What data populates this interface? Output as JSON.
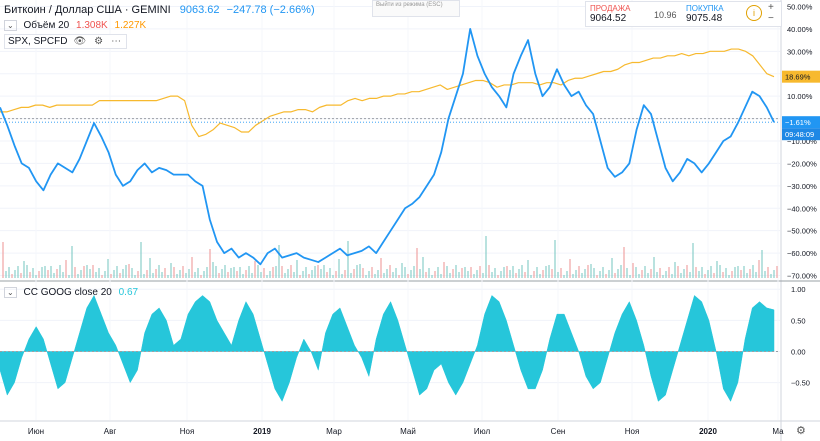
{
  "header": {
    "symbol": "Биткоин / Доллар США · GEMINI",
    "price": "9063.62",
    "change": "−247.78 (−2.66%)"
  },
  "volume": {
    "label": "Объём 20",
    "v1": "1.308K",
    "v2": "1.227K"
  },
  "compare": {
    "label": "SPX, SPCFD"
  },
  "escape_hint": "Выйти из режима (ESC)",
  "trade": {
    "sell_label": "ПРОДАЖА",
    "sell_value": "9064.52",
    "spread": "10.96",
    "buy_label": "ПОКУПКА",
    "buy_value": "9075.48",
    "info": "i",
    "plus": "+",
    "minus": "−"
  },
  "oscillator": {
    "label": "CC GOOG close 20",
    "value": "0.67"
  },
  "gear": "⚙",
  "colors": {
    "btc": "#2196f3",
    "spx": "#f7b92e",
    "osc": "#26c6da",
    "up": "#26a69a",
    "down": "#ef5350"
  },
  "chart_data": [
    {
      "type": "line",
      "title": "Биткоин / Доллар США · GEMINI vs SPX, SPCFD (percent)",
      "x_ticks": [
        "Июн",
        "Авг",
        "Ноя",
        "2019",
        "Мар",
        "Май",
        "Июл",
        "Сен",
        "Ноя",
        "2020",
        "Ма"
      ],
      "y_ticks": [
        "50.00%",
        "40.00%",
        "30.00%",
        "20.00%",
        "10.00%",
        "0.00%",
        "−10.00%",
        "−20.00%",
        "−30.00%",
        "−40.00%",
        "−50.00%",
        "−60.00%",
        "−70.00%"
      ],
      "ylim": [
        -72,
        52
      ],
      "series": [
        {
          "name": "BTC",
          "last_label": "−1.61%",
          "time_label": "09:48:09",
          "values": [
            5,
            -3,
            -12,
            -20,
            -22,
            -28,
            -32,
            -25,
            -20,
            -22,
            -24,
            -18,
            -10,
            -2,
            -8,
            -15,
            -25,
            -30,
            -28,
            -23,
            -20,
            -24,
            -22,
            -23,
            -25,
            -25,
            -25,
            -28,
            -30,
            -45,
            -55,
            -60,
            -58,
            -62,
            -60,
            -62,
            -65,
            -60,
            -58,
            -62,
            -61,
            -60,
            -62,
            -63,
            -64,
            -62,
            -60,
            -58,
            -61,
            -60,
            -59,
            -57,
            -60,
            -55,
            -50,
            -45,
            -40,
            -38,
            -35,
            -30,
            -25,
            -15,
            0,
            10,
            20,
            40,
            28,
            20,
            14,
            10,
            5,
            20,
            28,
            35,
            20,
            10,
            14,
            22,
            15,
            10,
            12,
            6,
            2,
            -10,
            -22,
            -26,
            -24,
            -20,
            -5,
            6,
            2,
            -10,
            -22,
            -28,
            -24,
            -18,
            -20,
            -24,
            -20,
            -15,
            -10,
            -8,
            -2,
            5,
            12,
            10,
            5,
            -1.61
          ]
        },
        {
          "name": "SPX",
          "last_label": "18.69%",
          "values": [
            3,
            3,
            4,
            5,
            5,
            6,
            6,
            5,
            6,
            6,
            6,
            6,
            6,
            6,
            8,
            8,
            8,
            8,
            8,
            8,
            8,
            8,
            8,
            9,
            10,
            10,
            8,
            -3,
            -8,
            -7,
            -5,
            -2,
            -3,
            -4,
            -6,
            -6,
            -3,
            -1,
            1,
            2,
            3,
            3,
            4,
            4,
            3,
            5,
            6,
            6,
            6,
            8,
            9,
            8,
            9,
            9,
            10,
            10,
            11,
            11,
            12,
            12,
            13,
            14,
            15,
            13,
            14,
            15,
            16,
            17,
            17,
            16,
            14,
            15,
            15,
            16,
            16,
            16,
            15,
            16,
            16,
            15,
            17,
            18,
            18,
            19,
            20,
            21,
            21,
            22,
            24,
            25,
            25,
            26,
            27,
            27,
            28,
            28,
            29,
            28,
            29,
            29,
            30,
            30,
            30,
            31,
            31,
            30,
            28,
            24,
            20,
            18.69
          ]
        }
      ]
    },
    {
      "type": "area",
      "title": "CC GOOG close 20",
      "y_ticks": [
        "1.00",
        "0.50",
        "0.00",
        "−0.50"
      ],
      "ylim": [
        -1.1,
        1.1
      ],
      "values": [
        -0.3,
        -0.7,
        -0.5,
        -0.1,
        0.2,
        0.4,
        0.2,
        -0.2,
        -0.6,
        -0.5,
        -0.1,
        0.3,
        0.7,
        0.9,
        0.6,
        0.3,
        0.1,
        -0.2,
        -0.5,
        -0.3,
        0.3,
        0.6,
        0.7,
        0.5,
        0.1,
        0.2,
        0.6,
        0.8,
        0.9,
        0.8,
        0.5,
        0.3,
        0.1,
        0.5,
        0.8,
        0.6,
        0.2,
        -0.2,
        -0.6,
        -0.8,
        -0.5,
        -0.1,
        0.2,
        0.0,
        -0.3,
        0.3,
        0.6,
        0.7,
        0.4,
        0.1,
        -0.1,
        -0.4,
        0.2,
        0.6,
        0.8,
        0.5,
        0.1,
        -0.3,
        -0.7,
        -0.6,
        -0.3,
        -0.2,
        -0.5,
        -0.7,
        -0.5,
        -0.2,
        0.1,
        0.6,
        0.9,
        0.8,
        0.5,
        0.1,
        -0.3,
        -0.6,
        -0.6,
        -0.3,
        0.2,
        0.6,
        0.6,
        0.3,
        0.0,
        -0.4,
        -0.6,
        -0.5,
        -0.1,
        0.3,
        0.6,
        0.8,
        0.5,
        0.1,
        -0.4,
        -0.8,
        -0.7,
        -0.3,
        0.1,
        0.5,
        0.9,
        0.8,
        0.5,
        0.0,
        -0.6,
        -0.8,
        -0.5,
        0.2,
        0.7,
        0.8,
        0.7,
        0.67
      ]
    }
  ]
}
